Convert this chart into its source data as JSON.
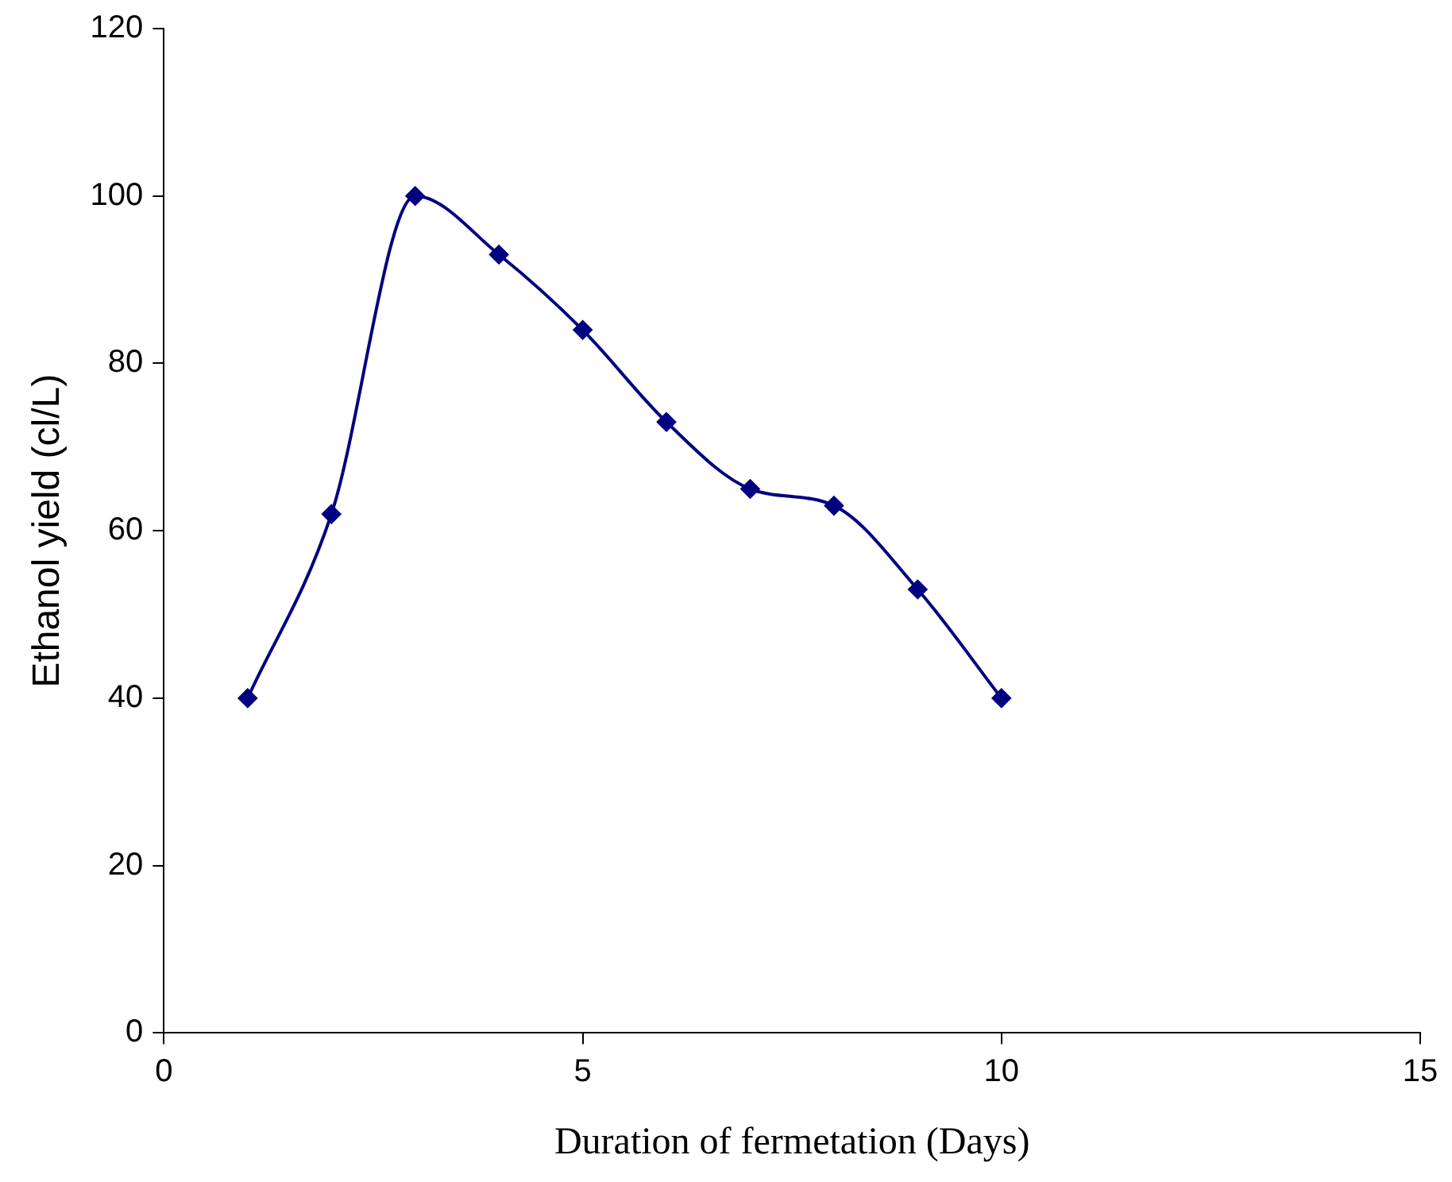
{
  "chart_data": {
    "type": "line",
    "xlabel": "Duration of fermetation (Days)",
    "ylabel": "Ethanol yield (cl/L)",
    "x": [
      1,
      2,
      3,
      4,
      5,
      6,
      7,
      8,
      9,
      10
    ],
    "series": [
      {
        "color": "#000080",
        "values": [
          40,
          62,
          100,
          93,
          84,
          73,
          65,
          63,
          53,
          40
        ]
      }
    ],
    "xlim": [
      0,
      15
    ],
    "xticks": [
      0,
      5,
      10,
      15
    ],
    "ylim": [
      0,
      120
    ],
    "yticks": [
      0,
      20,
      40,
      60,
      80,
      100,
      120
    ],
    "grid": false,
    "legend": false,
    "marker": "diamond",
    "line_style": "solid"
  }
}
